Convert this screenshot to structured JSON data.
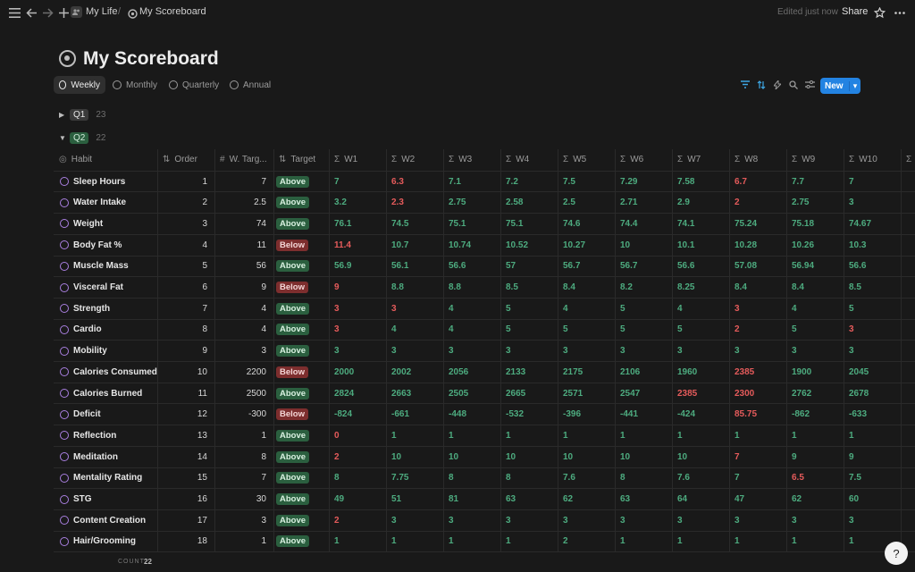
{
  "topbar": {
    "breadcrumb": [
      "My Life",
      "My Scoreboard"
    ],
    "separator": "/",
    "edited": "Edited just now",
    "share": "Share",
    "icons": [
      "menu-icon",
      "back-arrow-icon",
      "forward-arrow-icon",
      "plus-icon",
      "people-icon",
      "target-icon",
      "star-icon",
      "more-icon"
    ]
  },
  "page": {
    "title": "My Scoreboard"
  },
  "tabs": [
    {
      "label": "Weekly",
      "active": true
    },
    {
      "label": "Monthly",
      "active": false
    },
    {
      "label": "Quarterly",
      "active": false
    },
    {
      "label": "Annual",
      "active": false
    }
  ],
  "toolbar": {
    "new_label": "New",
    "icons": [
      "filter-icon",
      "sort-icon",
      "lightning-icon",
      "search-icon",
      "settings-icon"
    ]
  },
  "groups": [
    {
      "name": "Q1",
      "count": "23",
      "expanded": false
    },
    {
      "name": "Q2",
      "count": "22",
      "expanded": true
    }
  ],
  "columns": {
    "habit": "Habit",
    "order": "Order",
    "w_target": "W. Targ...",
    "target": "Target",
    "weeks": [
      "W1",
      "W2",
      "W3",
      "W4",
      "W5",
      "W6",
      "W7",
      "W8",
      "W9",
      "W10"
    ]
  },
  "rows": [
    {
      "habit": "Sleep Hours",
      "order": "1",
      "w_target": "7",
      "target": "Above",
      "weeks": [
        [
          "7",
          "g"
        ],
        [
          "6.3",
          "r"
        ],
        [
          "7.1",
          "g"
        ],
        [
          "7.2",
          "g"
        ],
        [
          "7.5",
          "g"
        ],
        [
          "7.29",
          "g"
        ],
        [
          "7.58",
          "g"
        ],
        [
          "6.7",
          "r"
        ],
        [
          "7.7",
          "g"
        ],
        [
          "7",
          "g"
        ]
      ]
    },
    {
      "habit": "Water Intake",
      "order": "2",
      "w_target": "2.5",
      "target": "Above",
      "weeks": [
        [
          "3.2",
          "g"
        ],
        [
          "2.3",
          "r"
        ],
        [
          "2.75",
          "g"
        ],
        [
          "2.58",
          "g"
        ],
        [
          "2.5",
          "g"
        ],
        [
          "2.71",
          "g"
        ],
        [
          "2.9",
          "g"
        ],
        [
          "2",
          "r"
        ],
        [
          "2.75",
          "g"
        ],
        [
          "3",
          "g"
        ]
      ]
    },
    {
      "habit": "Weight",
      "order": "3",
      "w_target": "74",
      "target": "Above",
      "weeks": [
        [
          "76.1",
          "g"
        ],
        [
          "74.5",
          "g"
        ],
        [
          "75.1",
          "g"
        ],
        [
          "75.1",
          "g"
        ],
        [
          "74.6",
          "g"
        ],
        [
          "74.4",
          "g"
        ],
        [
          "74.1",
          "g"
        ],
        [
          "75.24",
          "g"
        ],
        [
          "75.18",
          "g"
        ],
        [
          "74.67",
          "g"
        ]
      ]
    },
    {
      "habit": "Body Fat %",
      "order": "4",
      "w_target": "11",
      "target": "Below",
      "weeks": [
        [
          "11.4",
          "r"
        ],
        [
          "10.7",
          "g"
        ],
        [
          "10.74",
          "g"
        ],
        [
          "10.52",
          "g"
        ],
        [
          "10.27",
          "g"
        ],
        [
          "10",
          "g"
        ],
        [
          "10.1",
          "g"
        ],
        [
          "10.28",
          "g"
        ],
        [
          "10.26",
          "g"
        ],
        [
          "10.3",
          "g"
        ]
      ]
    },
    {
      "habit": "Muscle Mass",
      "order": "5",
      "w_target": "56",
      "target": "Above",
      "weeks": [
        [
          "56.9",
          "g"
        ],
        [
          "56.1",
          "g"
        ],
        [
          "56.6",
          "g"
        ],
        [
          "57",
          "g"
        ],
        [
          "56.7",
          "g"
        ],
        [
          "56.7",
          "g"
        ],
        [
          "56.6",
          "g"
        ],
        [
          "57.08",
          "g"
        ],
        [
          "56.94",
          "g"
        ],
        [
          "56.6",
          "g"
        ]
      ]
    },
    {
      "habit": "Visceral Fat",
      "order": "6",
      "w_target": "9",
      "target": "Below",
      "weeks": [
        [
          "9",
          "r"
        ],
        [
          "8.8",
          "g"
        ],
        [
          "8.8",
          "g"
        ],
        [
          "8.5",
          "g"
        ],
        [
          "8.4",
          "g"
        ],
        [
          "8.2",
          "g"
        ],
        [
          "8.25",
          "g"
        ],
        [
          "8.4",
          "g"
        ],
        [
          "8.4",
          "g"
        ],
        [
          "8.5",
          "g"
        ]
      ]
    },
    {
      "habit": "Strength",
      "order": "7",
      "w_target": "4",
      "target": "Above",
      "weeks": [
        [
          "3",
          "r"
        ],
        [
          "3",
          "r"
        ],
        [
          "4",
          "g"
        ],
        [
          "5",
          "g"
        ],
        [
          "4",
          "g"
        ],
        [
          "5",
          "g"
        ],
        [
          "4",
          "g"
        ],
        [
          "3",
          "r"
        ],
        [
          "4",
          "g"
        ],
        [
          "5",
          "g"
        ]
      ]
    },
    {
      "habit": "Cardio",
      "order": "8",
      "w_target": "4",
      "target": "Above",
      "weeks": [
        [
          "3",
          "r"
        ],
        [
          "4",
          "g"
        ],
        [
          "4",
          "g"
        ],
        [
          "5",
          "g"
        ],
        [
          "5",
          "g"
        ],
        [
          "5",
          "g"
        ],
        [
          "5",
          "g"
        ],
        [
          "2",
          "r"
        ],
        [
          "5",
          "g"
        ],
        [
          "3",
          "r"
        ]
      ]
    },
    {
      "habit": "Mobility",
      "order": "9",
      "w_target": "3",
      "target": "Above",
      "weeks": [
        [
          "3",
          "g"
        ],
        [
          "3",
          "g"
        ],
        [
          "3",
          "g"
        ],
        [
          "3",
          "g"
        ],
        [
          "3",
          "g"
        ],
        [
          "3",
          "g"
        ],
        [
          "3",
          "g"
        ],
        [
          "3",
          "g"
        ],
        [
          "3",
          "g"
        ],
        [
          "3",
          "g"
        ]
      ]
    },
    {
      "habit": "Calories Consumed",
      "order": "10",
      "w_target": "2200",
      "target": "Below",
      "weeks": [
        [
          "2000",
          "g"
        ],
        [
          "2002",
          "g"
        ],
        [
          "2056",
          "g"
        ],
        [
          "2133",
          "g"
        ],
        [
          "2175",
          "g"
        ],
        [
          "2106",
          "g"
        ],
        [
          "1960",
          "g"
        ],
        [
          "2385",
          "r"
        ],
        [
          "1900",
          "g"
        ],
        [
          "2045",
          "g"
        ]
      ]
    },
    {
      "habit": "Calories Burned",
      "order": "11",
      "w_target": "2500",
      "target": "Above",
      "weeks": [
        [
          "2824",
          "g"
        ],
        [
          "2663",
          "g"
        ],
        [
          "2505",
          "g"
        ],
        [
          "2665",
          "g"
        ],
        [
          "2571",
          "g"
        ],
        [
          "2547",
          "g"
        ],
        [
          "2385",
          "r"
        ],
        [
          "2300",
          "r"
        ],
        [
          "2762",
          "g"
        ],
        [
          "2678",
          "g"
        ]
      ]
    },
    {
      "habit": "Deficit",
      "order": "12",
      "w_target": "-300",
      "target": "Below",
      "weeks": [
        [
          "-824",
          "g"
        ],
        [
          "-661",
          "g"
        ],
        [
          "-448",
          "g"
        ],
        [
          "-532",
          "g"
        ],
        [
          "-396",
          "g"
        ],
        [
          "-441",
          "g"
        ],
        [
          "-424",
          "g"
        ],
        [
          "85.75",
          "r"
        ],
        [
          "-862",
          "g"
        ],
        [
          "-633",
          "g"
        ]
      ]
    },
    {
      "habit": "Reflection",
      "order": "13",
      "w_target": "1",
      "target": "Above",
      "weeks": [
        [
          "0",
          "r"
        ],
        [
          "1",
          "g"
        ],
        [
          "1",
          "g"
        ],
        [
          "1",
          "g"
        ],
        [
          "1",
          "g"
        ],
        [
          "1",
          "g"
        ],
        [
          "1",
          "g"
        ],
        [
          "1",
          "g"
        ],
        [
          "1",
          "g"
        ],
        [
          "1",
          "g"
        ]
      ]
    },
    {
      "habit": "Meditation",
      "order": "14",
      "w_target": "8",
      "target": "Above",
      "weeks": [
        [
          "2",
          "r"
        ],
        [
          "10",
          "g"
        ],
        [
          "10",
          "g"
        ],
        [
          "10",
          "g"
        ],
        [
          "10",
          "g"
        ],
        [
          "10",
          "g"
        ],
        [
          "10",
          "g"
        ],
        [
          "7",
          "r"
        ],
        [
          "9",
          "g"
        ],
        [
          "9",
          "g"
        ]
      ]
    },
    {
      "habit": "Mentality Rating",
      "order": "15",
      "w_target": "7",
      "target": "Above",
      "weeks": [
        [
          "8",
          "g"
        ],
        [
          "7.75",
          "g"
        ],
        [
          "8",
          "g"
        ],
        [
          "8",
          "g"
        ],
        [
          "7.6",
          "g"
        ],
        [
          "8",
          "g"
        ],
        [
          "7.6",
          "g"
        ],
        [
          "7",
          "g"
        ],
        [
          "6.5",
          "r"
        ],
        [
          "7.5",
          "g"
        ]
      ]
    },
    {
      "habit": "STG",
      "order": "16",
      "w_target": "30",
      "target": "Above",
      "weeks": [
        [
          "49",
          "g"
        ],
        [
          "51",
          "g"
        ],
        [
          "81",
          "g"
        ],
        [
          "63",
          "g"
        ],
        [
          "62",
          "g"
        ],
        [
          "63",
          "g"
        ],
        [
          "64",
          "g"
        ],
        [
          "47",
          "g"
        ],
        [
          "62",
          "g"
        ],
        [
          "60",
          "g"
        ]
      ]
    },
    {
      "habit": "Content Creation",
      "order": "17",
      "w_target": "3",
      "target": "Above",
      "weeks": [
        [
          "2",
          "r"
        ],
        [
          "3",
          "g"
        ],
        [
          "3",
          "g"
        ],
        [
          "3",
          "g"
        ],
        [
          "3",
          "g"
        ],
        [
          "3",
          "g"
        ],
        [
          "3",
          "g"
        ],
        [
          "3",
          "g"
        ],
        [
          "3",
          "g"
        ],
        [
          "3",
          "g"
        ]
      ]
    },
    {
      "habit": "Hair/Grooming",
      "order": "18",
      "w_target": "1",
      "target": "Above",
      "weeks": [
        [
          "1",
          "g"
        ],
        [
          "1",
          "g"
        ],
        [
          "1",
          "g"
        ],
        [
          "1",
          "g"
        ],
        [
          "2",
          "g"
        ],
        [
          "1",
          "g"
        ],
        [
          "1",
          "g"
        ],
        [
          "1",
          "g"
        ],
        [
          "1",
          "g"
        ],
        [
          "1",
          "g"
        ]
      ]
    }
  ],
  "footer": {
    "count_label": "COUNT",
    "count_value": "22",
    "help": "?"
  },
  "colors": {
    "good": "#4dab7f",
    "bad": "#e55b5b",
    "above": "#2b5f3f",
    "below": "#7d2e2e",
    "accent": "#2383e2"
  }
}
